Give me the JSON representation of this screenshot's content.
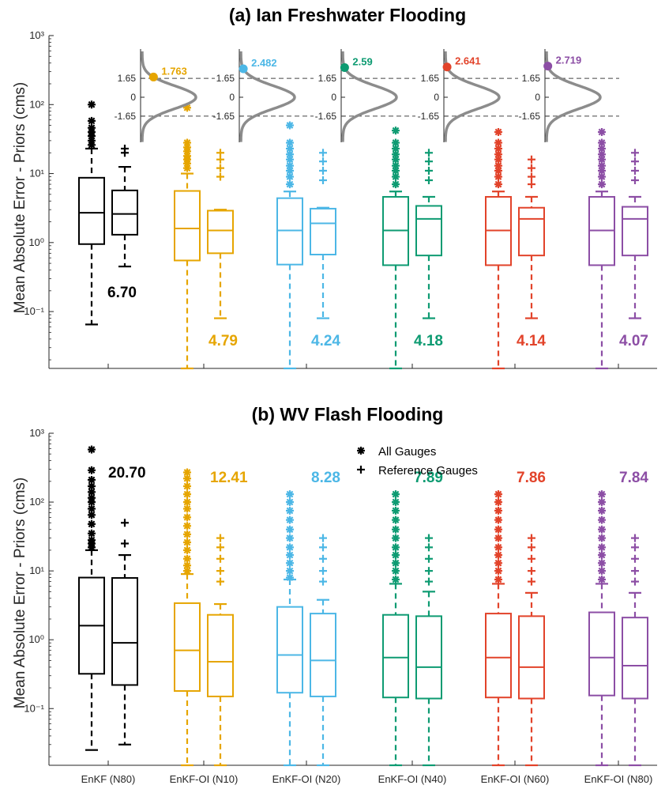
{
  "colors": [
    "#000000",
    "#e6a500",
    "#4cb7e6",
    "#0e9b72",
    "#e2432a",
    "#8c4ea5"
  ],
  "chart_data": [
    {
      "type": "box",
      "title": "(a) Ian Freshwater Flooding",
      "ylabel": "Mean Absolute Error - Priors (cms)",
      "yscale": "log",
      "ylim": [
        0.015,
        1000
      ],
      "yticks": [
        "10⁻¹",
        "10⁰",
        "10¹",
        "10²",
        "10³"
      ],
      "categories": [
        "EnKF (N80)",
        "EnKF-OI (N10)",
        "EnKF-OI (N20)",
        "EnKF-OI (N40)",
        "EnKF-OI (N60)",
        "EnKF-OI (N80)"
      ],
      "series": [
        {
          "name": "All Gauges",
          "boxes": [
            {
              "min": 0.065,
              "q1": 0.95,
              "median": 2.7,
              "q3": 8.7,
              "max": 23,
              "outliers": [
                26,
                30,
                35,
                40,
                46,
                58,
                100
              ]
            },
            {
              "min": 0.015,
              "q1": 0.55,
              "median": 1.6,
              "q3": 5.6,
              "max": 10,
              "outliers": [
                12,
                14,
                16,
                18,
                21,
                24,
                28,
                90
              ]
            },
            {
              "min": 0.015,
              "q1": 0.48,
              "median": 1.5,
              "q3": 4.4,
              "max": 5.5,
              "outliers": [
                7,
                9,
                11,
                13,
                16,
                19,
                23,
                28,
                50
              ]
            },
            {
              "min": 0.015,
              "q1": 0.47,
              "median": 1.5,
              "q3": 4.6,
              "max": 5.5,
              "outliers": [
                7,
                9,
                11,
                13,
                16,
                19,
                23,
                28,
                42
              ]
            },
            {
              "min": 0.015,
              "q1": 0.47,
              "median": 1.5,
              "q3": 4.6,
              "max": 5.5,
              "outliers": [
                7,
                9,
                11,
                13,
                16,
                19,
                23,
                28,
                40
              ]
            },
            {
              "min": 0.015,
              "q1": 0.47,
              "median": 1.5,
              "q3": 4.6,
              "max": 5.5,
              "outliers": [
                7,
                9,
                11,
                13,
                16,
                19,
                23,
                28,
                40
              ]
            }
          ]
        },
        {
          "name": "Reference Gauges",
          "boxes": [
            {
              "min": 0.45,
              "q1": 1.3,
              "median": 2.6,
              "q3": 5.7,
              "max": 12.5,
              "outliers": [
                20,
                23
              ]
            },
            {
              "min": 0.08,
              "q1": 0.7,
              "median": 1.5,
              "q3": 2.9,
              "max": 3.0,
              "outliers": [
                9,
                12,
                16,
                20
              ]
            },
            {
              "min": 0.08,
              "q1": 0.67,
              "median": 1.9,
              "q3": 3.1,
              "max": 3.2,
              "outliers": [
                8,
                11,
                15,
                20
              ]
            },
            {
              "min": 0.08,
              "q1": 0.65,
              "median": 2.2,
              "q3": 3.4,
              "max": 4.6,
              "outliers": [
                8,
                11,
                15,
                20
              ]
            },
            {
              "min": 0.08,
              "q1": 0.65,
              "median": 2.2,
              "q3": 3.2,
              "max": 4.6,
              "outliers": [
                7,
                9,
                12,
                16
              ]
            },
            {
              "min": 0.08,
              "q1": 0.65,
              "median": 2.2,
              "q3": 3.3,
              "max": 4.6,
              "outliers": [
                8,
                11,
                15,
                20
              ]
            }
          ]
        }
      ],
      "means": [
        "6.70",
        "4.79",
        "4.24",
        "4.18",
        "4.14",
        "4.07"
      ],
      "insets": [
        {
          "value": "1.763",
          "z": 1.763
        },
        {
          "value": "2.482",
          "z": 2.482
        },
        {
          "value": "2.59",
          "z": 2.59
        },
        {
          "value": "2.641",
          "z": 2.641
        },
        {
          "value": "2.719",
          "z": 2.719
        }
      ],
      "inset_ticks": [
        "1.65",
        "0",
        "-1.65"
      ]
    },
    {
      "type": "box",
      "title": "(b) WV Flash Flooding",
      "ylabel": "Mean Absolute Error - Priors (cms)",
      "yscale": "log",
      "ylim": [
        0.015,
        1000
      ],
      "yticks": [
        "10⁻¹",
        "10⁰",
        "10¹",
        "10²",
        "10³"
      ],
      "categories": [
        "EnKF (N80)",
        "EnKF-OI (N10)",
        "EnKF-OI (N20)",
        "EnKF-OI (N40)",
        "EnKF-OI (N60)",
        "EnKF-OI (N80)"
      ],
      "legend": {
        "position": "top-center",
        "entries": [
          "All Gauges",
          "Reference Gauges"
        ]
      },
      "series": [
        {
          "name": "All Gauges",
          "boxes": [
            {
              "min": 0.025,
              "q1": 0.32,
              "median": 1.6,
              "q3": 8.0,
              "max": 20,
              "outliers": [
                22,
                25,
                28,
                35,
                48,
                65,
                80,
                100,
                115,
                140,
                170,
                210,
                290,
                580
              ]
            },
            {
              "min": 0.015,
              "q1": 0.18,
              "median": 0.7,
              "q3": 3.4,
              "max": 9,
              "outliers": [
                10,
                12,
                15,
                20,
                26,
                34,
                45,
                60,
                80,
                100,
                130,
                170,
                220,
                270
              ]
            },
            {
              "min": 0.015,
              "q1": 0.17,
              "median": 0.6,
              "q3": 3.0,
              "max": 7.5,
              "outliers": [
                8,
                10,
                13,
                17,
                22,
                30,
                40,
                55,
                75,
                100,
                130
              ]
            },
            {
              "min": 0.015,
              "q1": 0.145,
              "median": 0.55,
              "q3": 2.3,
              "max": 6.5,
              "outliers": [
                7.5,
                10,
                13,
                17,
                22,
                30,
                40,
                55,
                75,
                100,
                130
              ]
            },
            {
              "min": 0.015,
              "q1": 0.145,
              "median": 0.55,
              "q3": 2.4,
              "max": 6.5,
              "outliers": [
                7.5,
                10,
                13,
                17,
                22,
                30,
                40,
                55,
                75,
                100,
                130
              ]
            },
            {
              "min": 0.015,
              "q1": 0.155,
              "median": 0.55,
              "q3": 2.5,
              "max": 6.5,
              "outliers": [
                7.5,
                10,
                13,
                17,
                22,
                30,
                40,
                55,
                75,
                100,
                130
              ]
            }
          ]
        },
        {
          "name": "Reference Gauges",
          "boxes": [
            {
              "min": 0.03,
              "q1": 0.22,
              "median": 0.9,
              "q3": 7.9,
              "max": 17,
              "outliers": [
                25,
                50
              ]
            },
            {
              "min": 0.015,
              "q1": 0.15,
              "median": 0.48,
              "q3": 2.3,
              "max": 3.3,
              "outliers": [
                7,
                10,
                15,
                22,
                30
              ]
            },
            {
              "min": 0.015,
              "q1": 0.15,
              "median": 0.5,
              "q3": 2.4,
              "max": 3.8,
              "outliers": [
                7,
                10,
                15,
                22,
                30
              ]
            },
            {
              "min": 0.015,
              "q1": 0.14,
              "median": 0.4,
              "q3": 2.2,
              "max": 5.0,
              "outliers": [
                7,
                10,
                15,
                22,
                30
              ]
            },
            {
              "min": 0.015,
              "q1": 0.14,
              "median": 0.4,
              "q3": 2.2,
              "max": 4.8,
              "outliers": [
                7,
                10,
                15,
                22,
                30
              ]
            },
            {
              "min": 0.015,
              "q1": 0.14,
              "median": 0.42,
              "q3": 2.1,
              "max": 4.8,
              "outliers": [
                7,
                10,
                15,
                22,
                30
              ]
            }
          ]
        }
      ],
      "means": [
        "20.70",
        "12.41",
        "8.28",
        "7.89",
        "7.86",
        "7.84"
      ]
    }
  ]
}
